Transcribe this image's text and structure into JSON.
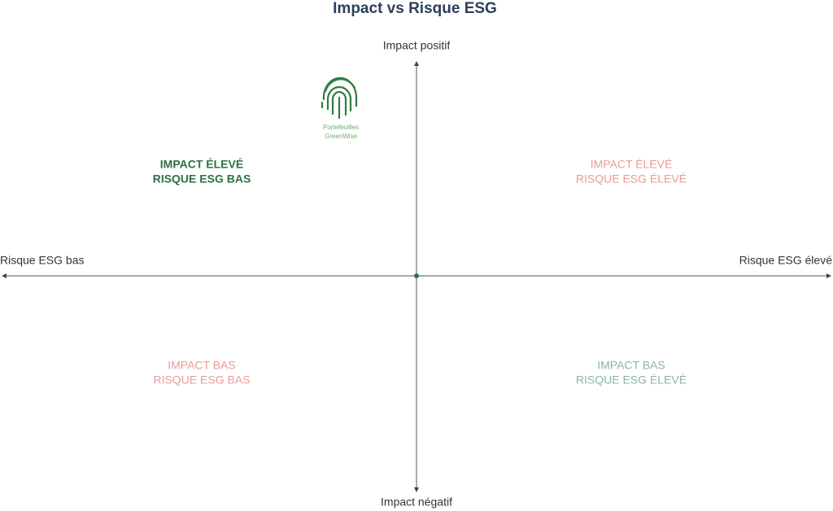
{
  "title": "Impact vs Risque ESG",
  "axes": {
    "top": "Impact positif",
    "bottom": "Impact négatif",
    "left": "Risque ESG bas",
    "right": "Risque ESG élevé"
  },
  "logo": {
    "lines": [
      "Portefeuilles",
      "GreenWise"
    ]
  },
  "quadrants": [
    {
      "lines": [
        "IMPACT ÉLEVÉ",
        "RISQUE ESG BAS"
      ]
    },
    {
      "lines": [
        "IMPACT ÉLEVÉ",
        "RISQUE ESG ÉLEVÉ"
      ]
    },
    {
      "lines": [
        "IMPACT BAS",
        "RISQUE ESG BAS"
      ]
    },
    {
      "lines": [
        "IMPACT BAS",
        "RISQUE ESG ÉLEVÉ"
      ]
    }
  ]
}
